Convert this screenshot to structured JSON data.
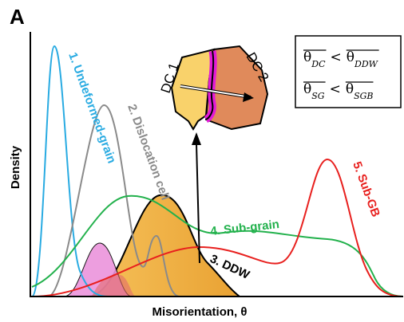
{
  "panel_label": "A",
  "axes": {
    "y_label": "Density",
    "x_label": "Misorientation, θ"
  },
  "curves": [
    {
      "label": "1. Undeformed-grain"
    },
    {
      "label": "2. Dislocation cell"
    },
    {
      "label": "3. DDW"
    },
    {
      "label": "4. Sub-grain"
    },
    {
      "label": "5. Sub-GB"
    }
  ],
  "inset": {
    "cells": [
      "DC 1",
      "DC 2"
    ]
  },
  "legend_box": {
    "lines": [
      {
        "left": "θ",
        "left_sub": "DC",
        "op": "<",
        "right": "θ",
        "right_sub": "DDW"
      },
      {
        "left": "θ",
        "left_sub": "SG",
        "op": "<",
        "right": "θ",
        "right_sub": "SGB"
      }
    ]
  }
}
